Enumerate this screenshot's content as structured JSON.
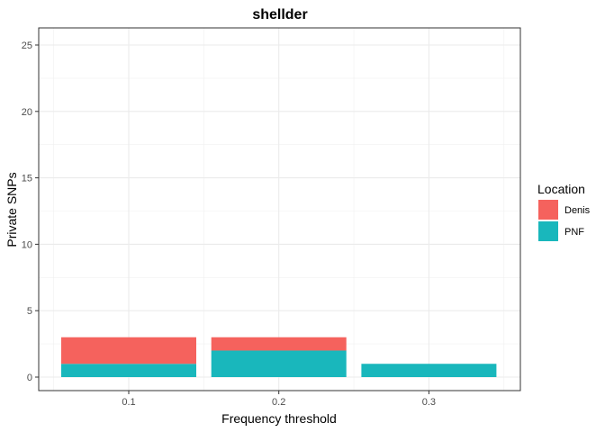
{
  "chart_data": {
    "type": "bar",
    "stacked": true,
    "title": "shellder",
    "xlabel": "Frequency threshold",
    "ylabel": "Private SNPs",
    "categories": [
      "0.1",
      "0.2",
      "0.3"
    ],
    "series": [
      {
        "name": "PNF",
        "values": [
          1,
          2,
          1
        ],
        "color": "#19b7bc"
      },
      {
        "name": "Denis",
        "values": [
          2,
          1,
          0
        ],
        "color": "#f5625d"
      }
    ],
    "ylim": [
      0,
      26
    ],
    "yticks": [
      0,
      5,
      10,
      15,
      20,
      25
    ],
    "grid": true,
    "legend": {
      "title": "Location",
      "placement": "right",
      "entries": [
        {
          "name": "Denis",
          "color": "#f5625d"
        },
        {
          "name": "PNF",
          "color": "#19b7bc"
        }
      ]
    }
  }
}
